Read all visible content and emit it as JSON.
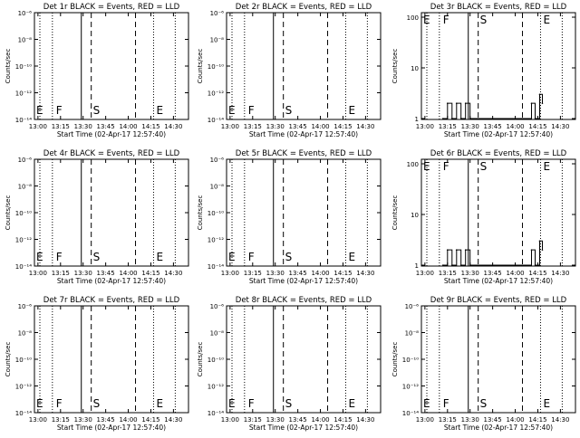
{
  "chart_data": [
    {
      "type": "line",
      "title": "Det 1r BLACK = Events, RED = LLD",
      "xlabel": "Start Time (02-Apr-17 12:57:40)",
      "ylabel": "Counts/sec",
      "yscale": "log",
      "ylim": [
        1e-06,
        1e-14
      ],
      "yticks": [
        "10⁻¹⁴",
        "10⁻¹²",
        "10⁻¹⁰",
        "10⁻⁸",
        "10⁻⁶"
      ],
      "xticks": [
        "13:00",
        "13:15",
        "13:30",
        "13:45",
        "14:00",
        "14:15",
        "14:30"
      ],
      "markers": [
        "E",
        "F",
        "S",
        "E"
      ],
      "series": []
    },
    {
      "type": "line",
      "title": "Det 2r BLACK = Events, RED = LLD",
      "xlabel": "Start Time (02-Apr-17 12:57:40)",
      "ylabel": "Counts/sec",
      "yscale": "log",
      "ylim": [
        1e-06,
        1e-14
      ],
      "yticks": [
        "10⁻¹⁴",
        "10⁻¹²",
        "10⁻¹⁰",
        "10⁻⁸",
        "10⁻⁶"
      ],
      "xticks": [
        "13:00",
        "13:15",
        "13:30",
        "13:45",
        "14:00",
        "14:15",
        "14:30"
      ],
      "markers": [
        "E",
        "F",
        "S",
        "E"
      ],
      "series": []
    },
    {
      "type": "line",
      "title": "Det 3r BLACK = Events, RED = LLD",
      "xlabel": "Start Time (02-Apr-17 12:57:40)",
      "ylabel": "Counts/sec",
      "yscale": "log",
      "ylim": [
        1,
        100
      ],
      "yticks": [
        "1",
        "10",
        "100"
      ],
      "xticks": [
        "13:00",
        "13:15",
        "13:30",
        "13:45",
        "14:00",
        "14:15",
        "14:30"
      ],
      "markers": [
        "E",
        "F",
        "S",
        "E"
      ],
      "series": [
        {
          "name": "Events",
          "values": [
            [
              13.2,
              1
            ],
            [
              13.25,
              2
            ],
            [
              13.3,
              1
            ],
            [
              13.35,
              2
            ],
            [
              13.4,
              1
            ],
            [
              13.45,
              2
            ],
            [
              13.5,
              1
            ],
            [
              14.18,
              2
            ],
            [
              14.22,
              1
            ],
            [
              14.27,
              3
            ],
            [
              14.3,
              2
            ]
          ]
        }
      ]
    },
    {
      "type": "line",
      "title": "Det 4r BLACK = Events, RED = LLD",
      "xlabel": "Start Time (02-Apr-17 12:57:40)",
      "ylabel": "Counts/sec",
      "yscale": "log",
      "ylim": [
        1e-06,
        1e-14
      ],
      "yticks": [
        "10⁻¹⁴",
        "10⁻¹²",
        "10⁻¹⁰",
        "10⁻⁸",
        "10⁻⁶"
      ],
      "xticks": [
        "13:00",
        "13:15",
        "13:30",
        "13:45",
        "14:00",
        "14:15",
        "14:30"
      ],
      "markers": [
        "E",
        "F",
        "S",
        "E"
      ],
      "series": []
    },
    {
      "type": "line",
      "title": "Det 5r BLACK = Events, RED = LLD",
      "xlabel": "Start Time (02-Apr-17 12:57:40)",
      "ylabel": "Counts/sec",
      "yscale": "log",
      "ylim": [
        1e-06,
        1e-14
      ],
      "yticks": [
        "10⁻¹⁴",
        "10⁻¹²",
        "10⁻¹⁰",
        "10⁻⁸",
        "10⁻⁶"
      ],
      "xticks": [
        "13:00",
        "13:15",
        "13:30",
        "13:45",
        "14:00",
        "14:15",
        "14:30"
      ],
      "markers": [
        "E",
        "F",
        "S",
        "E"
      ],
      "series": []
    },
    {
      "type": "line",
      "title": "Det 6r BLACK = Events, RED = LLD",
      "xlabel": "Start Time (02-Apr-17 12:57:40)",
      "ylabel": "Counts/sec",
      "yscale": "log",
      "ylim": [
        1,
        100
      ],
      "yticks": [
        "1",
        "10",
        "100"
      ],
      "xticks": [
        "13:00",
        "13:15",
        "13:30",
        "13:45",
        "14:00",
        "14:15",
        "14:30"
      ],
      "markers": [
        "E",
        "F",
        "S",
        "E"
      ],
      "series": [
        {
          "name": "Events",
          "values": [
            [
              13.2,
              1
            ],
            [
              13.25,
              2
            ],
            [
              13.3,
              1
            ],
            [
              13.35,
              2
            ],
            [
              13.4,
              1
            ],
            [
              13.45,
              2
            ],
            [
              13.5,
              1
            ],
            [
              14.18,
              2
            ],
            [
              14.22,
              1
            ],
            [
              14.27,
              3
            ],
            [
              14.3,
              2
            ]
          ]
        }
      ]
    },
    {
      "type": "line",
      "title": "Det 7r BLACK = Events, RED = LLD",
      "xlabel": "Start Time (02-Apr-17 12:57:40)",
      "ylabel": "Counts/sec",
      "yscale": "log",
      "ylim": [
        1e-06,
        1e-14
      ],
      "yticks": [
        "10⁻¹⁴",
        "10⁻¹²",
        "10⁻¹⁰",
        "10⁻⁸",
        "10⁻⁶"
      ],
      "xticks": [
        "13:00",
        "13:15",
        "13:30",
        "13:45",
        "14:00",
        "14:15",
        "14:30"
      ],
      "markers": [
        "E",
        "F",
        "S",
        "E"
      ],
      "series": []
    },
    {
      "type": "line",
      "title": "Det 8r BLACK = Events, RED = LLD",
      "xlabel": "Start Time (02-Apr-17 12:57:40)",
      "ylabel": "Counts/sec",
      "yscale": "log",
      "ylim": [
        1e-06,
        1e-14
      ],
      "yticks": [
        "10⁻¹⁴",
        "10⁻¹²",
        "10⁻¹⁰",
        "10⁻⁸",
        "10⁻⁶"
      ],
      "xticks": [
        "13:00",
        "13:15",
        "13:30",
        "13:45",
        "14:00",
        "14:15",
        "14:30"
      ],
      "markers": [
        "E",
        "F",
        "S",
        "E"
      ],
      "series": []
    },
    {
      "type": "line",
      "title": "Det 9r BLACK = Events, RED = LLD",
      "xlabel": "Start Time (02-Apr-17 12:57:40)",
      "ylabel": "Counts/sec",
      "yscale": "log",
      "ylim": [
        1e-06,
        1e-14
      ],
      "yticks": [
        "10⁻¹⁴",
        "10⁻¹²",
        "10⁻¹⁰",
        "10⁻⁸",
        "10⁻⁶"
      ],
      "xticks": [
        "13:00",
        "13:15",
        "13:30",
        "13:45",
        "14:00",
        "14:15",
        "14:30"
      ],
      "markers": [
        "E",
        "F",
        "S",
        "E"
      ],
      "series": []
    }
  ]
}
